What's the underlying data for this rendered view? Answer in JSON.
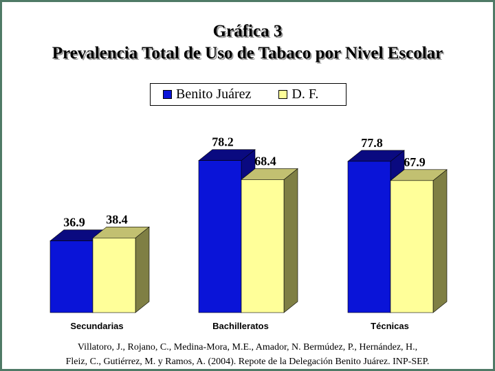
{
  "title_line1": "Gráfica 3",
  "title_line2": "Prevalencia Total de Uso de Tabaco por Nivel Escolar",
  "legend": [
    {
      "label": "Benito Juárez",
      "color": "#0a14d8"
    },
    {
      "label": "D. F.",
      "color": "#ffff99"
    }
  ],
  "chart_data": {
    "type": "bar",
    "categories": [
      "Secundarias",
      "Bachilleratos",
      "Técnicas"
    ],
    "series": [
      {
        "name": "Benito Juárez",
        "values": [
          36.9,
          78.2,
          77.8
        ],
        "color": "#0a14d8"
      },
      {
        "name": "D. F.",
        "values": [
          38.4,
          68.4,
          67.9
        ],
        "color": "#ffff99"
      }
    ],
    "ylim": [
      0,
      100
    ],
    "grid": false,
    "legend_position": "top-center"
  },
  "citation_line1": "Villatoro, J., Rojano, C., Medina-Mora, M.E., Amador, N. Bermúdez, P., Hernández, H.,",
  "citation_line2": "Fleiz, C., Gutiérrez, M. y Ramos, A. (2004). Repote de la Delegación Benito Juárez. INP-SEP."
}
